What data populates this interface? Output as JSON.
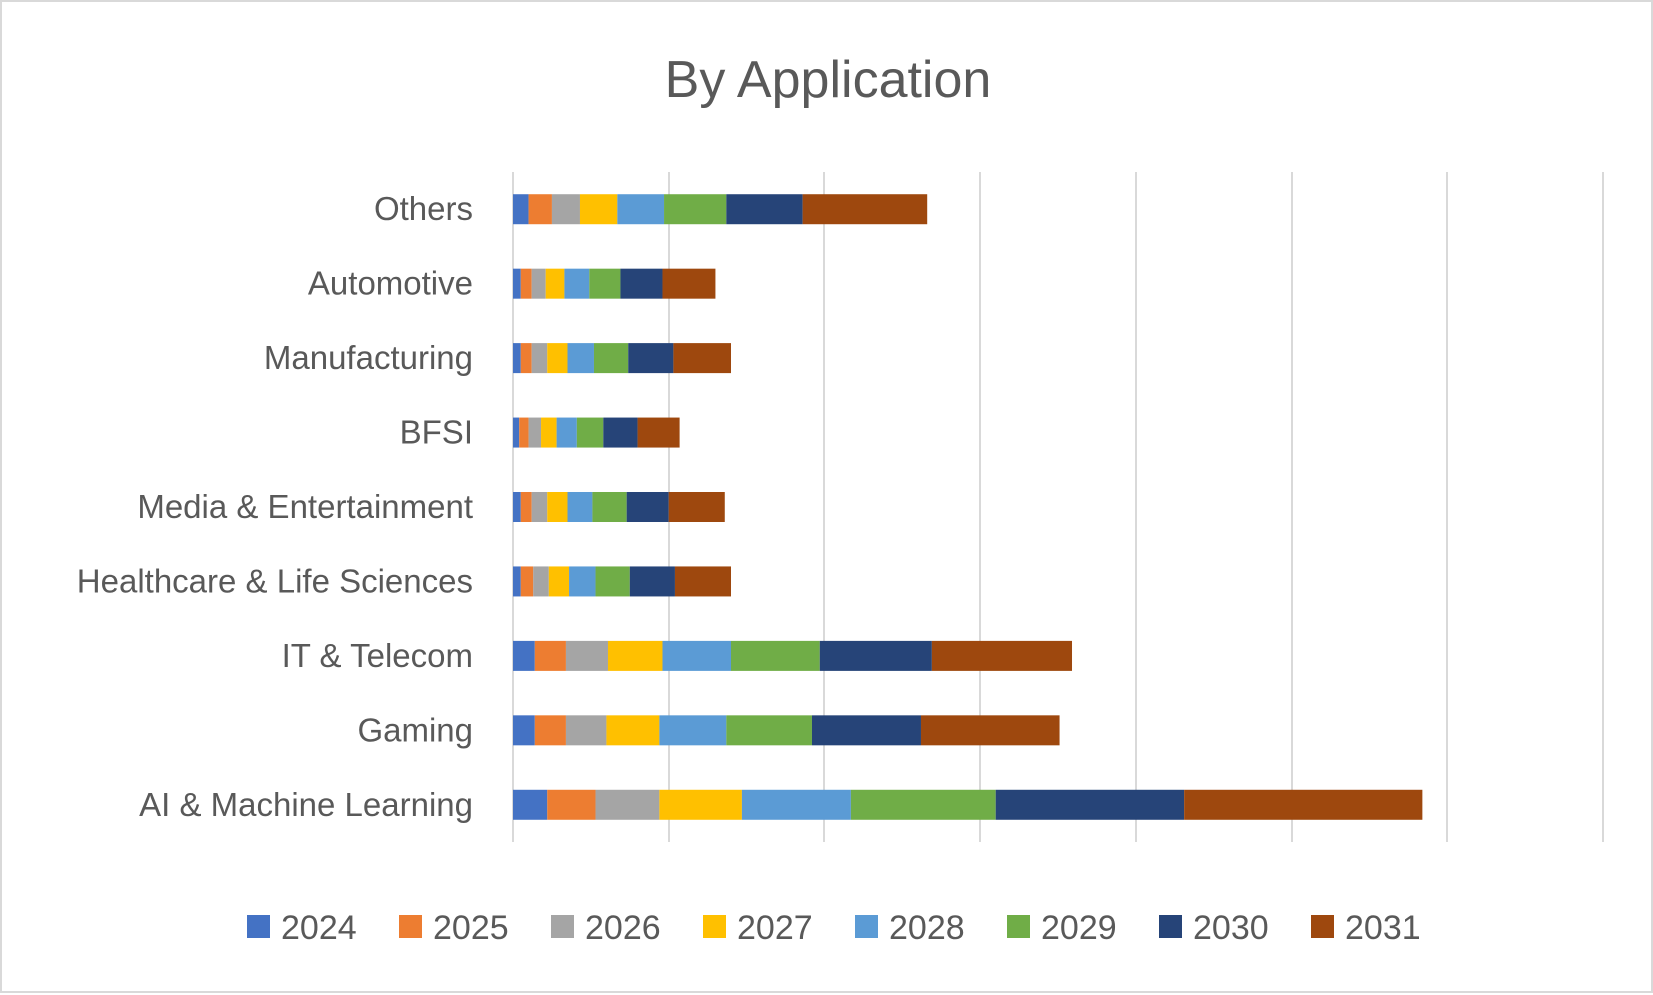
{
  "chart_data": {
    "type": "bar",
    "orientation": "horizontal",
    "stacked": true,
    "title": "By Application",
    "xlabel": "",
    "ylabel": "",
    "xlim": [
      0,
      7
    ],
    "grid": true,
    "legend_position": "bottom",
    "categories": [
      "AI & Machine Learning",
      "Gaming",
      "IT & Telecom",
      "Healthcare & Life Sciences",
      "Media & Entertainment",
      "BFSI",
      "Manufacturing",
      "Automotive",
      "Others"
    ],
    "series": [
      {
        "name": "2024",
        "color": "#4472C4",
        "values": [
          0.22,
          0.14,
          0.14,
          0.05,
          0.05,
          0.04,
          0.05,
          0.05,
          0.1
        ]
      },
      {
        "name": "2025",
        "color": "#ED7D31",
        "values": [
          0.31,
          0.2,
          0.2,
          0.08,
          0.07,
          0.06,
          0.07,
          0.07,
          0.15
        ]
      },
      {
        "name": "2026",
        "color": "#A5A5A5",
        "values": [
          0.41,
          0.26,
          0.27,
          0.1,
          0.1,
          0.08,
          0.1,
          0.09,
          0.18
        ]
      },
      {
        "name": "2027",
        "color": "#FFC000",
        "values": [
          0.53,
          0.34,
          0.35,
          0.13,
          0.13,
          0.1,
          0.13,
          0.12,
          0.24
        ]
      },
      {
        "name": "2028",
        "color": "#5B9BD5",
        "values": [
          0.7,
          0.43,
          0.44,
          0.17,
          0.16,
          0.13,
          0.17,
          0.16,
          0.3
        ]
      },
      {
        "name": "2029",
        "color": "#70AD47",
        "values": [
          0.93,
          0.55,
          0.57,
          0.22,
          0.22,
          0.17,
          0.22,
          0.2,
          0.4
        ]
      },
      {
        "name": "2030",
        "color": "#264478",
        "values": [
          1.21,
          0.7,
          0.72,
          0.29,
          0.27,
          0.22,
          0.29,
          0.27,
          0.49
        ]
      },
      {
        "name": "2031",
        "color": "#9E480E",
        "values": [
          1.53,
          0.89,
          0.9,
          0.36,
          0.36,
          0.27,
          0.37,
          0.34,
          0.8
        ]
      }
    ]
  }
}
